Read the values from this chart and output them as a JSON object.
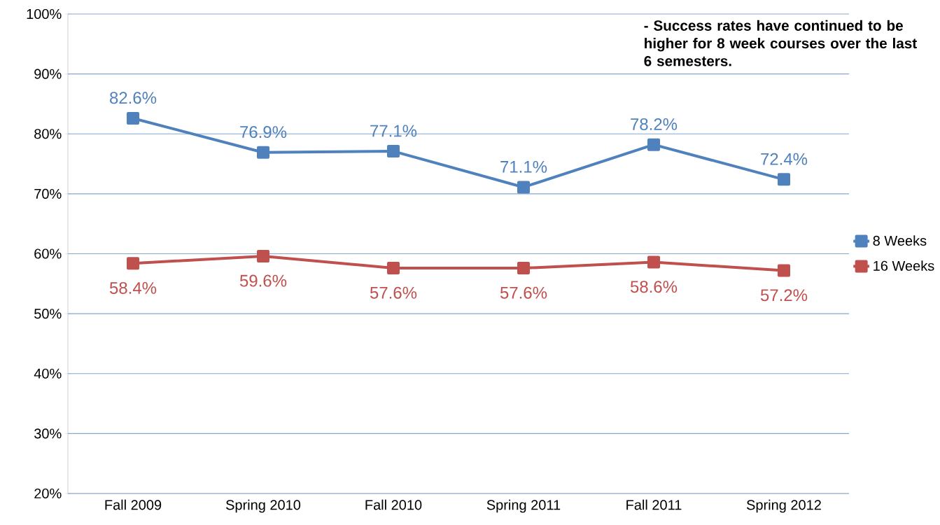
{
  "chart_data": {
    "type": "line",
    "categories": [
      "Fall 2009",
      "Spring 2010",
      "Fall 2010",
      "Spring 2011",
      "Fall 2011",
      "Spring 2012"
    ],
    "series": [
      {
        "name": "8 Weeks",
        "color": "#4f81bd",
        "values": [
          82.6,
          76.9,
          77.1,
          71.1,
          78.2,
          72.4
        ],
        "value_labels": [
          "82.6%",
          "76.9%",
          "77.1%",
          "71.1%",
          "78.2%",
          "72.4%"
        ]
      },
      {
        "name": "16 Weeks",
        "color": "#c0504d",
        "values": [
          58.4,
          59.6,
          57.6,
          57.6,
          58.6,
          57.2
        ],
        "value_labels": [
          "58.4%",
          "59.6%",
          "57.6%",
          "57.6%",
          "58.6%",
          "57.2%"
        ]
      }
    ],
    "ylim": [
      20,
      100
    ],
    "yticks": [
      {
        "value": 20,
        "label": "20%"
      },
      {
        "value": 30,
        "label": "30%"
      },
      {
        "value": 40,
        "label": "40%"
      },
      {
        "value": 50,
        "label": "50%"
      },
      {
        "value": 60,
        "label": "60%"
      },
      {
        "value": 70,
        "label": "70%"
      },
      {
        "value": 80,
        "label": "80%"
      },
      {
        "value": 90,
        "label": "90%"
      },
      {
        "value": 100,
        "label": "100%"
      }
    ],
    "grid": "y",
    "legend": "right",
    "marker": "square",
    "line_style": "solid",
    "annotations": [
      "- Success rates have continued to be higher for 8 week courses over the last 6 semesters."
    ]
  }
}
